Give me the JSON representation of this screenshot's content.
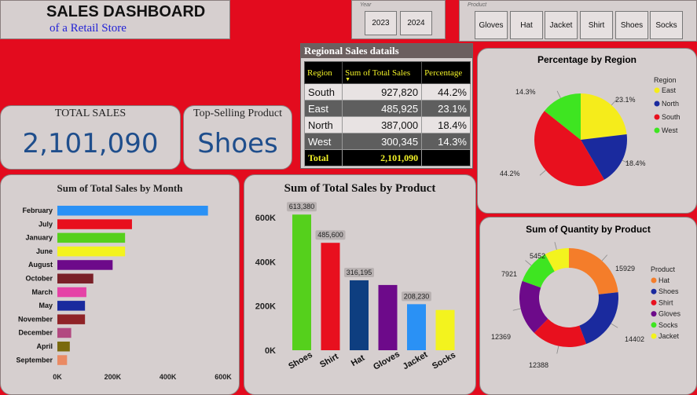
{
  "header": {
    "title": "SALES DASHBOARD",
    "subtitle": "of a Retail Store"
  },
  "year_slicer": {
    "caption": "Year",
    "options": [
      "2023",
      "2024"
    ]
  },
  "product_slicer": {
    "caption": "Product",
    "options": [
      "Gloves",
      "Hat",
      "Jacket",
      "Shirt",
      "Shoes",
      "Socks"
    ]
  },
  "kpi": {
    "total_sales_label": "TOTAL SALES",
    "total_sales_value": "2,101,090",
    "top_product_label": "Top-Selling Product",
    "top_product_value": "Shoes"
  },
  "regional_table": {
    "title": "Regional Sales datails",
    "headers": [
      "Region",
      "Sum of Total Sales",
      "Percentage"
    ],
    "rows": [
      {
        "region": "South",
        "sales": "927,820",
        "pct": "44.2%"
      },
      {
        "region": "East",
        "sales": "485,925",
        "pct": "23.1%"
      },
      {
        "region": "North",
        "sales": "387,000",
        "pct": "18.4%"
      },
      {
        "region": "West",
        "sales": "300,345",
        "pct": "14.3%"
      }
    ],
    "total": {
      "label": "Total",
      "sales": "2,101,090",
      "pct": ""
    }
  },
  "colors": {
    "background": "#e30b1e",
    "panel": "#d6cfcf",
    "value_blue": "#1f4e8c",
    "table_header_text": "#f2f227"
  },
  "chart_data": [
    {
      "type": "pie",
      "title": "Percentage by Region",
      "legend_title": "Region",
      "legend_position": "right",
      "labels": [
        "East",
        "North",
        "South",
        "West"
      ],
      "values": [
        23.1,
        18.4,
        44.2,
        14.3
      ],
      "value_labels": [
        "23.1%",
        "18.4%",
        "44.2%",
        "14.3%"
      ],
      "colors": [
        "#f5ec1b",
        "#1a2a9e",
        "#e8101e",
        "#3ee521"
      ]
    },
    {
      "type": "bar",
      "orientation": "horizontal",
      "title": "Sum of Total Sales by Month",
      "categories": [
        "February",
        "July",
        "January",
        "June",
        "August",
        "October",
        "March",
        "May",
        "November",
        "December",
        "April",
        "September"
      ],
      "values": [
        545000,
        270000,
        245000,
        245000,
        200000,
        130000,
        105000,
        100000,
        100000,
        50000,
        45000,
        35000
      ],
      "colors": [
        "#2a91f5",
        "#e8101e",
        "#55d01c",
        "#f3f31e",
        "#6d0a8a",
        "#7a2028",
        "#e542a6",
        "#1a2a9e",
        "#8f2327",
        "#b24980",
        "#7a6a0d",
        "#ea8a63"
      ],
      "xticks": [
        "0K",
        "200K",
        "400K",
        "600K"
      ],
      "xlim": [
        0,
        600000
      ]
    },
    {
      "type": "bar",
      "title": "Sum of Total Sales by Product",
      "categories": [
        "Shoes",
        "Shirt",
        "Hat",
        "Gloves",
        "Jacket",
        "Socks"
      ],
      "values": [
        613380,
        485600,
        316195,
        295000,
        208230,
        182000
      ],
      "data_labels": [
        "613,380",
        "485,600",
        "316,195",
        "",
        "208,230",
        ""
      ],
      "colors": [
        "#55d01c",
        "#e8101e",
        "#0e3e80",
        "#6d0a8a",
        "#2a91f5",
        "#f3f31e"
      ],
      "yticks": [
        "0K",
        "200K",
        "400K",
        "600K"
      ],
      "ylim": [
        0,
        650000
      ]
    },
    {
      "type": "pie",
      "subtype": "donut",
      "title": "Sum of Quantity by Product",
      "legend_title": "Product",
      "legend_position": "right",
      "labels": [
        "Hat",
        "Shoes",
        "Shirt",
        "Gloves",
        "Socks",
        "Jacket"
      ],
      "values": [
        15929,
        14402,
        12388,
        12369,
        7921,
        5452
      ],
      "colors": [
        "#f47d2a",
        "#1a2a9e",
        "#e8101e",
        "#6d0a8a",
        "#3ee521",
        "#f3f31e"
      ]
    }
  ]
}
